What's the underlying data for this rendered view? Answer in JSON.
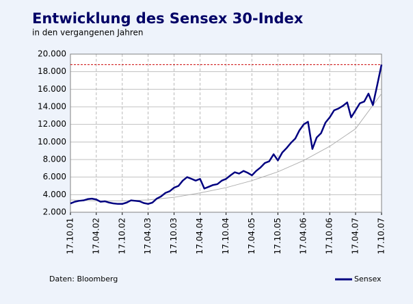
{
  "chart_data": {
    "type": "line",
    "title": "Entwicklung des Sensex 30-Index",
    "subtitle": "in den vergangenen Jahren",
    "source": "Daten: Bloomberg",
    "legend": "bottom-right",
    "grid": true,
    "x": [
      "17.10.01",
      "17.11.01",
      "17.12.01",
      "17.01.02",
      "17.02.02",
      "17.03.02",
      "17.04.02",
      "17.05.02",
      "17.06.02",
      "17.07.02",
      "17.08.02",
      "17.09.02",
      "17.10.02",
      "17.11.02",
      "17.12.02",
      "17.01.03",
      "17.02.03",
      "17.03.03",
      "17.04.03",
      "17.05.03",
      "17.06.03",
      "17.07.03",
      "17.08.03",
      "17.09.03",
      "17.10.03",
      "17.11.03",
      "17.12.03",
      "17.01.04",
      "17.02.04",
      "17.03.04",
      "17.04.04",
      "17.05.04",
      "17.06.04",
      "17.07.04",
      "17.08.04",
      "17.09.04",
      "17.10.04",
      "17.11.04",
      "17.12.04",
      "17.01.05",
      "17.02.05",
      "17.03.05",
      "17.04.05",
      "17.05.05",
      "17.06.05",
      "17.07.05",
      "17.08.05",
      "17.09.05",
      "17.10.05",
      "17.11.05",
      "17.12.05",
      "17.01.06",
      "17.02.06",
      "17.03.06",
      "17.04.06",
      "17.05.06",
      "17.06.06",
      "17.07.06",
      "17.08.06",
      "17.09.06",
      "17.10.06",
      "17.11.06",
      "17.12.06",
      "17.01.07",
      "17.02.07",
      "17.03.07",
      "17.04.07",
      "17.05.07",
      "17.06.07",
      "17.07.07",
      "17.08.07",
      "17.09.07",
      "17.10.07"
    ],
    "series": [
      {
        "name": "Sensex",
        "color": "#000080",
        "values": [
          3000,
          3200,
          3300,
          3350,
          3500,
          3550,
          3450,
          3200,
          3250,
          3100,
          3000,
          2950,
          2950,
          3100,
          3350,
          3300,
          3250,
          3050,
          2950,
          3100,
          3550,
          3800,
          4200,
          4400,
          4800,
          5000,
          5600,
          6000,
          5800,
          5600,
          5800,
          4700,
          4900,
          5100,
          5200,
          5600,
          5800,
          6200,
          6550,
          6400,
          6700,
          6500,
          6200,
          6700,
          7100,
          7600,
          7800,
          8600,
          7900,
          8800,
          9300,
          9900,
          10400,
          11300,
          12000,
          12300,
          9200,
          10500,
          11000,
          12200,
          12800,
          13600,
          13800,
          14100,
          14500,
          12800,
          13600,
          14400,
          14600,
          15500,
          14200,
          16500,
          18800
        ]
      }
    ],
    "trend": {
      "color": "#b0b0b0",
      "x": [
        "17.10.01",
        "17.04.02",
        "17.10.02",
        "17.04.03",
        "17.10.03",
        "17.04.04",
        "17.10.04",
        "17.04.05",
        "17.10.05",
        "17.04.06",
        "17.10.06",
        "17.04.07",
        "17.10.07"
      ],
      "values": [
        3400,
        3300,
        3300,
        3400,
        3700,
        4200,
        4800,
        5600,
        6600,
        7900,
        9500,
        11500,
        15500
      ]
    },
    "hline": {
      "value": 18800,
      "color": "#cc0000"
    },
    "xlim": [
      "17.10.01",
      "17.10.07"
    ],
    "xticks": [
      "17.10.01",
      "17.04.02",
      "17.10.02",
      "17.04.03",
      "17.10.03",
      "17.04.04",
      "17.10.04",
      "17.04.05",
      "17.10.05",
      "17.04.06",
      "17.10.06",
      "17.04.07",
      "17.10.07"
    ],
    "ylim": [
      2000,
      20000
    ],
    "yticks": [
      {
        "value": 2000,
        "label": "2.000"
      },
      {
        "value": 4000,
        "label": "4.000"
      },
      {
        "value": 6000,
        "label": "6.000"
      },
      {
        "value": 8000,
        "label": "8.000"
      },
      {
        "value": 10000,
        "label": "10.000"
      },
      {
        "value": 12000,
        "label": "12.000"
      },
      {
        "value": 14000,
        "label": "14.000"
      },
      {
        "value": 16000,
        "label": "16.000"
      },
      {
        "value": 18000,
        "label": "18.000"
      },
      {
        "value": 20000,
        "label": "20.000"
      }
    ]
  }
}
